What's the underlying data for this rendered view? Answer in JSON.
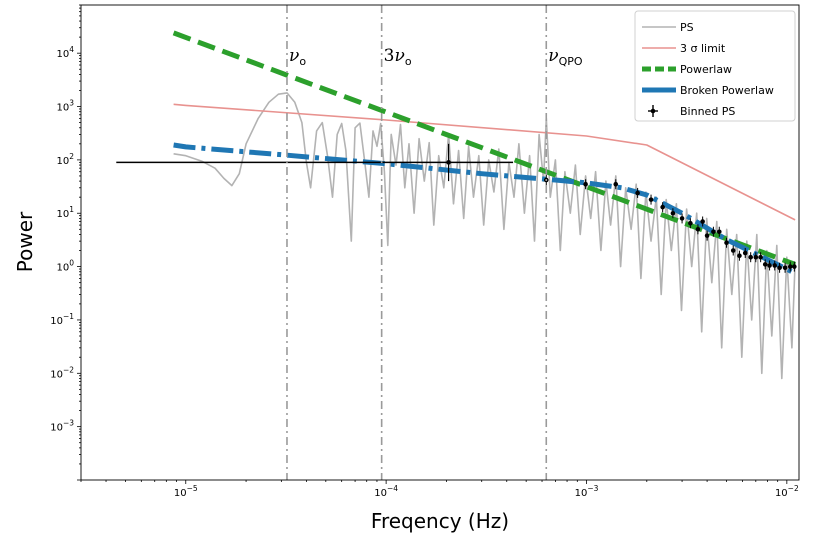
{
  "chart_data": {
    "type": "line",
    "title": "",
    "xlabel": "Freqency (Hz)",
    "ylabel": "Power",
    "xscale": "log",
    "yscale": "log",
    "xlim": [
      3e-06,
      0.0115
    ],
    "ylim": [
      0.0001,
      80000
    ],
    "grid": false,
    "legend_position": "top-right",
    "x_ticks": [
      {
        "value": 1e-05,
        "base": "10",
        "exp": "−5"
      },
      {
        "value": 0.0001,
        "base": "10",
        "exp": "−4"
      },
      {
        "value": 0.001,
        "base": "10",
        "exp": "−3"
      },
      {
        "value": 0.01,
        "base": "10",
        "exp": "−2"
      }
    ],
    "y_ticks": [
      {
        "value": 0.001,
        "base": "10",
        "exp": "−3"
      },
      {
        "value": 0.01,
        "base": "10",
        "exp": "−2"
      },
      {
        "value": 0.1,
        "base": "10",
        "exp": "−1"
      },
      {
        "value": 1,
        "base": "10",
        "exp": "0"
      },
      {
        "value": 10,
        "base": "10",
        "exp": "1"
      },
      {
        "value": 100,
        "base": "10",
        "exp": "2"
      },
      {
        "value": 1000,
        "base": "10",
        "exp": "3"
      },
      {
        "value": 10000,
        "base": "10",
        "exp": "4"
      }
    ],
    "annotations": [
      {
        "x": 3.2e-05,
        "main": "ν",
        "sub": "o",
        "prefix": ""
      },
      {
        "x": 9.5e-05,
        "main": "ν",
        "sub": "o",
        "prefix": "3"
      },
      {
        "x": 0.00063,
        "main": "ν",
        "sub": "QPO",
        "prefix": ""
      }
    ],
    "series": [
      {
        "name": "PS",
        "style": "ps",
        "color": "#b3b3b3",
        "points": [
          [
            8.7e-06,
            130
          ],
          [
            1e-05,
            120
          ],
          [
            1.2e-05,
            95
          ],
          [
            1.4e-05,
            70
          ],
          [
            1.55e-05,
            45
          ],
          [
            1.7e-05,
            33
          ],
          [
            1.85e-05,
            55
          ],
          [
            2e-05,
            200
          ],
          [
            2.3e-05,
            600
          ],
          [
            2.6e-05,
            1200
          ],
          [
            2.9e-05,
            1700
          ],
          [
            3.2e-05,
            1800
          ],
          [
            3.5e-05,
            1200
          ],
          [
            3.8e-05,
            500
          ],
          [
            4e-05,
            90
          ],
          [
            4.2e-05,
            30
          ],
          [
            4.5e-05,
            350
          ],
          [
            4.8e-05,
            500
          ],
          [
            5.1e-05,
            120
          ],
          [
            5.4e-05,
            20
          ],
          [
            5.7e-05,
            300
          ],
          [
            6e-05,
            480
          ],
          [
            6.3e-05,
            150
          ],
          [
            6.7e-05,
            3
          ],
          [
            7e-05,
            400
          ],
          [
            7.4e-05,
            490
          ],
          [
            7.8e-05,
            100
          ],
          [
            8.2e-05,
            20
          ],
          [
            8.6e-05,
            350
          ],
          [
            9e-05,
            180
          ],
          [
            9.4e-05,
            480
          ],
          [
            9.8e-05,
            60
          ],
          [
            0.000102,
            2.5
          ],
          [
            0.000106,
            300
          ],
          [
            0.000112,
            80
          ],
          [
            0.000118,
            460
          ],
          [
            0.000124,
            30
          ],
          [
            0.00013,
            200
          ],
          [
            0.000138,
            10
          ],
          [
            0.000146,
            250
          ],
          [
            0.000155,
            40
          ],
          [
            0.000164,
            210
          ],
          [
            0.000173,
            6
          ],
          [
            0.000183,
            120
          ],
          [
            0.000194,
            30
          ],
          [
            0.000205,
            300
          ],
          [
            0.000217,
            15
          ],
          [
            0.00023,
            150
          ],
          [
            0.000244,
            8
          ],
          [
            0.000258,
            180
          ],
          [
            0.000273,
            20
          ],
          [
            0.00029,
            120
          ],
          [
            0.000307,
            6
          ],
          [
            0.000325,
            100
          ],
          [
            0.000345,
            25
          ],
          [
            0.000365,
            160
          ],
          [
            0.000387,
            5
          ],
          [
            0.00041,
            90
          ],
          [
            0.000435,
            20
          ],
          [
            0.00046,
            200
          ],
          [
            0.00049,
            10
          ],
          [
            0.00052,
            120
          ],
          [
            0.00055,
            3
          ],
          [
            0.00058,
            300
          ],
          [
            0.00061,
            40
          ],
          [
            0.00063,
            600
          ],
          [
            0.00066,
            20
          ],
          [
            0.0007,
            100
          ],
          [
            0.00074,
            2
          ],
          [
            0.00078,
            60
          ],
          [
            0.00083,
            10
          ],
          [
            0.00088,
            80
          ],
          [
            0.00093,
            4
          ],
          [
            0.00099,
            50
          ],
          [
            0.00105,
            8
          ],
          [
            0.00111,
            60
          ],
          [
            0.00118,
            2
          ],
          [
            0.00125,
            40
          ],
          [
            0.00132,
            6
          ],
          [
            0.0014,
            50
          ],
          [
            0.00148,
            1
          ],
          [
            0.00157,
            30
          ],
          [
            0.00167,
            5
          ],
          [
            0.00177,
            35
          ],
          [
            0.00187,
            0.6
          ],
          [
            0.00198,
            25
          ],
          [
            0.0021,
            3
          ],
          [
            0.00223,
            20
          ],
          [
            0.00236,
            0.3
          ],
          [
            0.0025,
            18
          ],
          [
            0.00265,
            2
          ],
          [
            0.00281,
            15
          ],
          [
            0.00298,
            0.15
          ],
          [
            0.00316,
            12
          ],
          [
            0.00335,
            1
          ],
          [
            0.00355,
            10
          ],
          [
            0.00376,
            0.06
          ],
          [
            0.00398,
            8
          ],
          [
            0.00422,
            0.5
          ],
          [
            0.00447,
            7
          ],
          [
            0.00473,
            0.03
          ],
          [
            0.00501,
            5
          ],
          [
            0.00531,
            0.3
          ],
          [
            0.00562,
            4
          ],
          [
            0.00596,
            0.02
          ],
          [
            0.00631,
            3
          ],
          [
            0.00668,
            0.1
          ],
          [
            0.00708,
            4
          ],
          [
            0.0075,
            0.01
          ],
          [
            0.00794,
            2
          ],
          [
            0.00841,
            0.05
          ],
          [
            0.00891,
            2.5
          ],
          [
            0.00944,
            0.008
          ],
          [
            0.01,
            1.5
          ],
          [
            0.0106,
            0.03
          ],
          [
            0.011,
            1.2
          ]
        ]
      },
      {
        "name": "3 σ limit",
        "style": "limit",
        "color": "#e8928f",
        "points": [
          [
            8.7e-06,
            1100
          ],
          [
            1e-05,
            1050
          ],
          [
            0.0001,
            560
          ],
          [
            0.001,
            280
          ],
          [
            0.002,
            190
          ],
          [
            0.011,
            7.5
          ]
        ]
      },
      {
        "name": "Powerlaw",
        "style": "powerlaw",
        "color": "#2ca02c",
        "points": [
          [
            8.7e-06,
            24000
          ],
          [
            0.011,
            1.1
          ]
        ]
      },
      {
        "name": "Broken Powerlaw",
        "style": "broken",
        "color": "#1f77b4",
        "points": [
          [
            8.7e-06,
            190
          ],
          [
            1e-05,
            175
          ],
          [
            3e-05,
            125
          ],
          [
            0.0001,
            85
          ],
          [
            0.0003,
            55
          ],
          [
            0.0007,
            42
          ],
          [
            0.001,
            37
          ],
          [
            0.0015,
            30
          ],
          [
            0.002,
            22
          ],
          [
            0.003,
            10
          ],
          [
            0.005,
            3.2
          ],
          [
            0.008,
            1.35
          ],
          [
            0.011,
            0.75
          ]
        ]
      },
      {
        "name": "Binned PS",
        "style": "binned",
        "color": "#000000",
        "points": [
          [
            0.000205,
            90
          ],
          [
            0.00063,
            42
          ],
          [
            0.00099,
            35
          ],
          [
            0.0014,
            35
          ],
          [
            0.0018,
            24
          ],
          [
            0.0021,
            18
          ],
          [
            0.0024,
            13
          ],
          [
            0.0027,
            10
          ],
          [
            0.003,
            8
          ],
          [
            0.0033,
            6.5
          ],
          [
            0.0036,
            5
          ],
          [
            0.0038,
            7
          ],
          [
            0.004,
            3.8
          ],
          [
            0.0043,
            4.5
          ],
          [
            0.0046,
            4.5
          ],
          [
            0.005,
            2.8
          ],
          [
            0.0054,
            2
          ],
          [
            0.0058,
            1.6
          ],
          [
            0.0062,
            1.8
          ],
          [
            0.0066,
            1.5
          ],
          [
            0.007,
            1.5
          ],
          [
            0.0074,
            1.5
          ],
          [
            0.0078,
            1.1
          ],
          [
            0.0082,
            1.05
          ],
          [
            0.0087,
            1.05
          ],
          [
            0.0092,
            0.95
          ],
          [
            0.0098,
            0.95
          ],
          [
            0.0104,
            1.0
          ],
          [
            0.0109,
            1.0
          ]
        ],
        "xerr_points": [
          [
            4.5e-06,
            0.00043,
            90
          ]
        ],
        "yerr_points": [
          [
            0.000205,
            40,
            200
          ]
        ]
      }
    ]
  }
}
